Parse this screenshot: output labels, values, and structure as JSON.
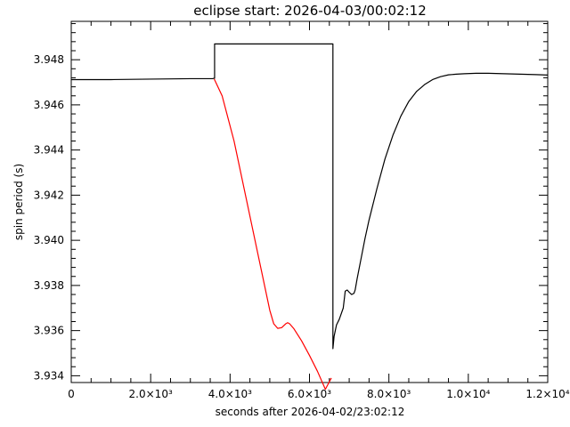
{
  "chart_data": {
    "type": "line",
    "title": "eclipse start: 2026-04-03/00:02:12",
    "xlabel": "seconds after 2026-04-02/23:02:12",
    "ylabel": "spin period (s)",
    "xlim": [
      0,
      12000
    ],
    "ylim": [
      3.9337,
      3.9497
    ],
    "grid": false,
    "x_ticks": [
      {
        "value": 0,
        "label": "0"
      },
      {
        "value": 2000,
        "label": "2.0×10³"
      },
      {
        "value": 4000,
        "label": "4.0×10³"
      },
      {
        "value": 6000,
        "label": "6.0×10³"
      },
      {
        "value": 8000,
        "label": "8.0×10³"
      },
      {
        "value": 10000,
        "label": "1.0×10⁴"
      },
      {
        "value": 12000,
        "label": "1.2×10⁴"
      }
    ],
    "y_ticks": [
      {
        "value": 3.934,
        "label": "3.934"
      },
      {
        "value": 3.936,
        "label": "3.936"
      },
      {
        "value": 3.938,
        "label": "3.938"
      },
      {
        "value": 3.94,
        "label": "3.940"
      },
      {
        "value": 3.942,
        "label": "3.942"
      },
      {
        "value": 3.944,
        "label": "3.944"
      },
      {
        "value": 3.946,
        "label": "3.946"
      },
      {
        "value": 3.948,
        "label": "3.948"
      }
    ],
    "series": [
      {
        "color": "#000000",
        "x": [
          0,
          1000,
          2000,
          3000,
          3560,
          3600,
          3610,
          3610,
          6590,
          6590,
          6620,
          6680,
          6750,
          6850,
          6900,
          6950,
          7000,
          7060,
          7120,
          7150,
          7200,
          7300,
          7400,
          7500,
          7700,
          7900,
          8100,
          8300,
          8500,
          8700,
          8900,
          9100,
          9300,
          9500,
          9700,
          9900,
          10200,
          10500,
          10900,
          11300,
          11700,
          12000
        ],
        "y": [
          3.94712,
          3.94712,
          3.94714,
          3.94716,
          3.94716,
          3.94718,
          3.94718,
          3.9487,
          3.9487,
          3.9352,
          3.93575,
          3.93625,
          3.9365,
          3.937,
          3.93775,
          3.9378,
          3.9377,
          3.9376,
          3.93765,
          3.9378,
          3.9383,
          3.9392,
          3.9401,
          3.9409,
          3.9423,
          3.9436,
          3.94465,
          3.9455,
          3.94615,
          3.9466,
          3.9469,
          3.94712,
          3.94725,
          3.94733,
          3.94736,
          3.94738,
          3.9474,
          3.9474,
          3.94738,
          3.94736,
          3.94734,
          3.94732
        ]
      },
      {
        "color": "#ff0000",
        "x": [
          3600,
          3800,
          4100,
          4400,
          4700,
          5000,
          5100,
          5200,
          5300,
          5400,
          5450,
          5500,
          5600,
          5800,
          6000,
          6200,
          6400,
          6550
        ],
        "y": [
          3.94715,
          3.9464,
          3.9444,
          3.9419,
          3.9394,
          3.9369,
          3.9363,
          3.9361,
          3.93613,
          3.9363,
          3.93635,
          3.9363,
          3.9361,
          3.93555,
          3.9349,
          3.9342,
          3.9334,
          3.9339
        ]
      }
    ]
  }
}
